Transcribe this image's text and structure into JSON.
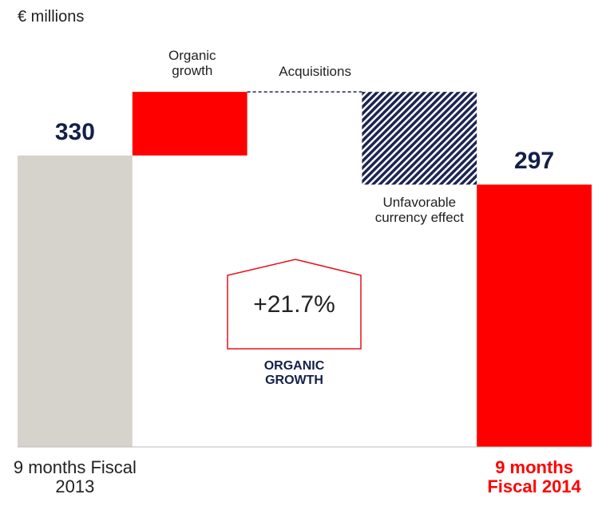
{
  "chart_data": {
    "type": "waterfall",
    "subtitle": "€ millions",
    "categories": [
      "9 months Fiscal 2013",
      "Organic growth",
      "Acquisitions",
      "Unfavorable currency effect",
      "9 months Fiscal 2014"
    ],
    "values": [
      330,
      72,
      0,
      -105,
      297
    ],
    "kinds": [
      "total",
      "delta",
      "delta",
      "delta",
      "total"
    ],
    "colors": [
      "#d6d3cc",
      "#ff0000",
      "#1c2552",
      "#1c2552",
      "#ff0000"
    ],
    "ylim": [
      0,
      450
    ],
    "annotations": [
      "+21.7%",
      "ORGANIC GROWTH"
    ]
  }
}
